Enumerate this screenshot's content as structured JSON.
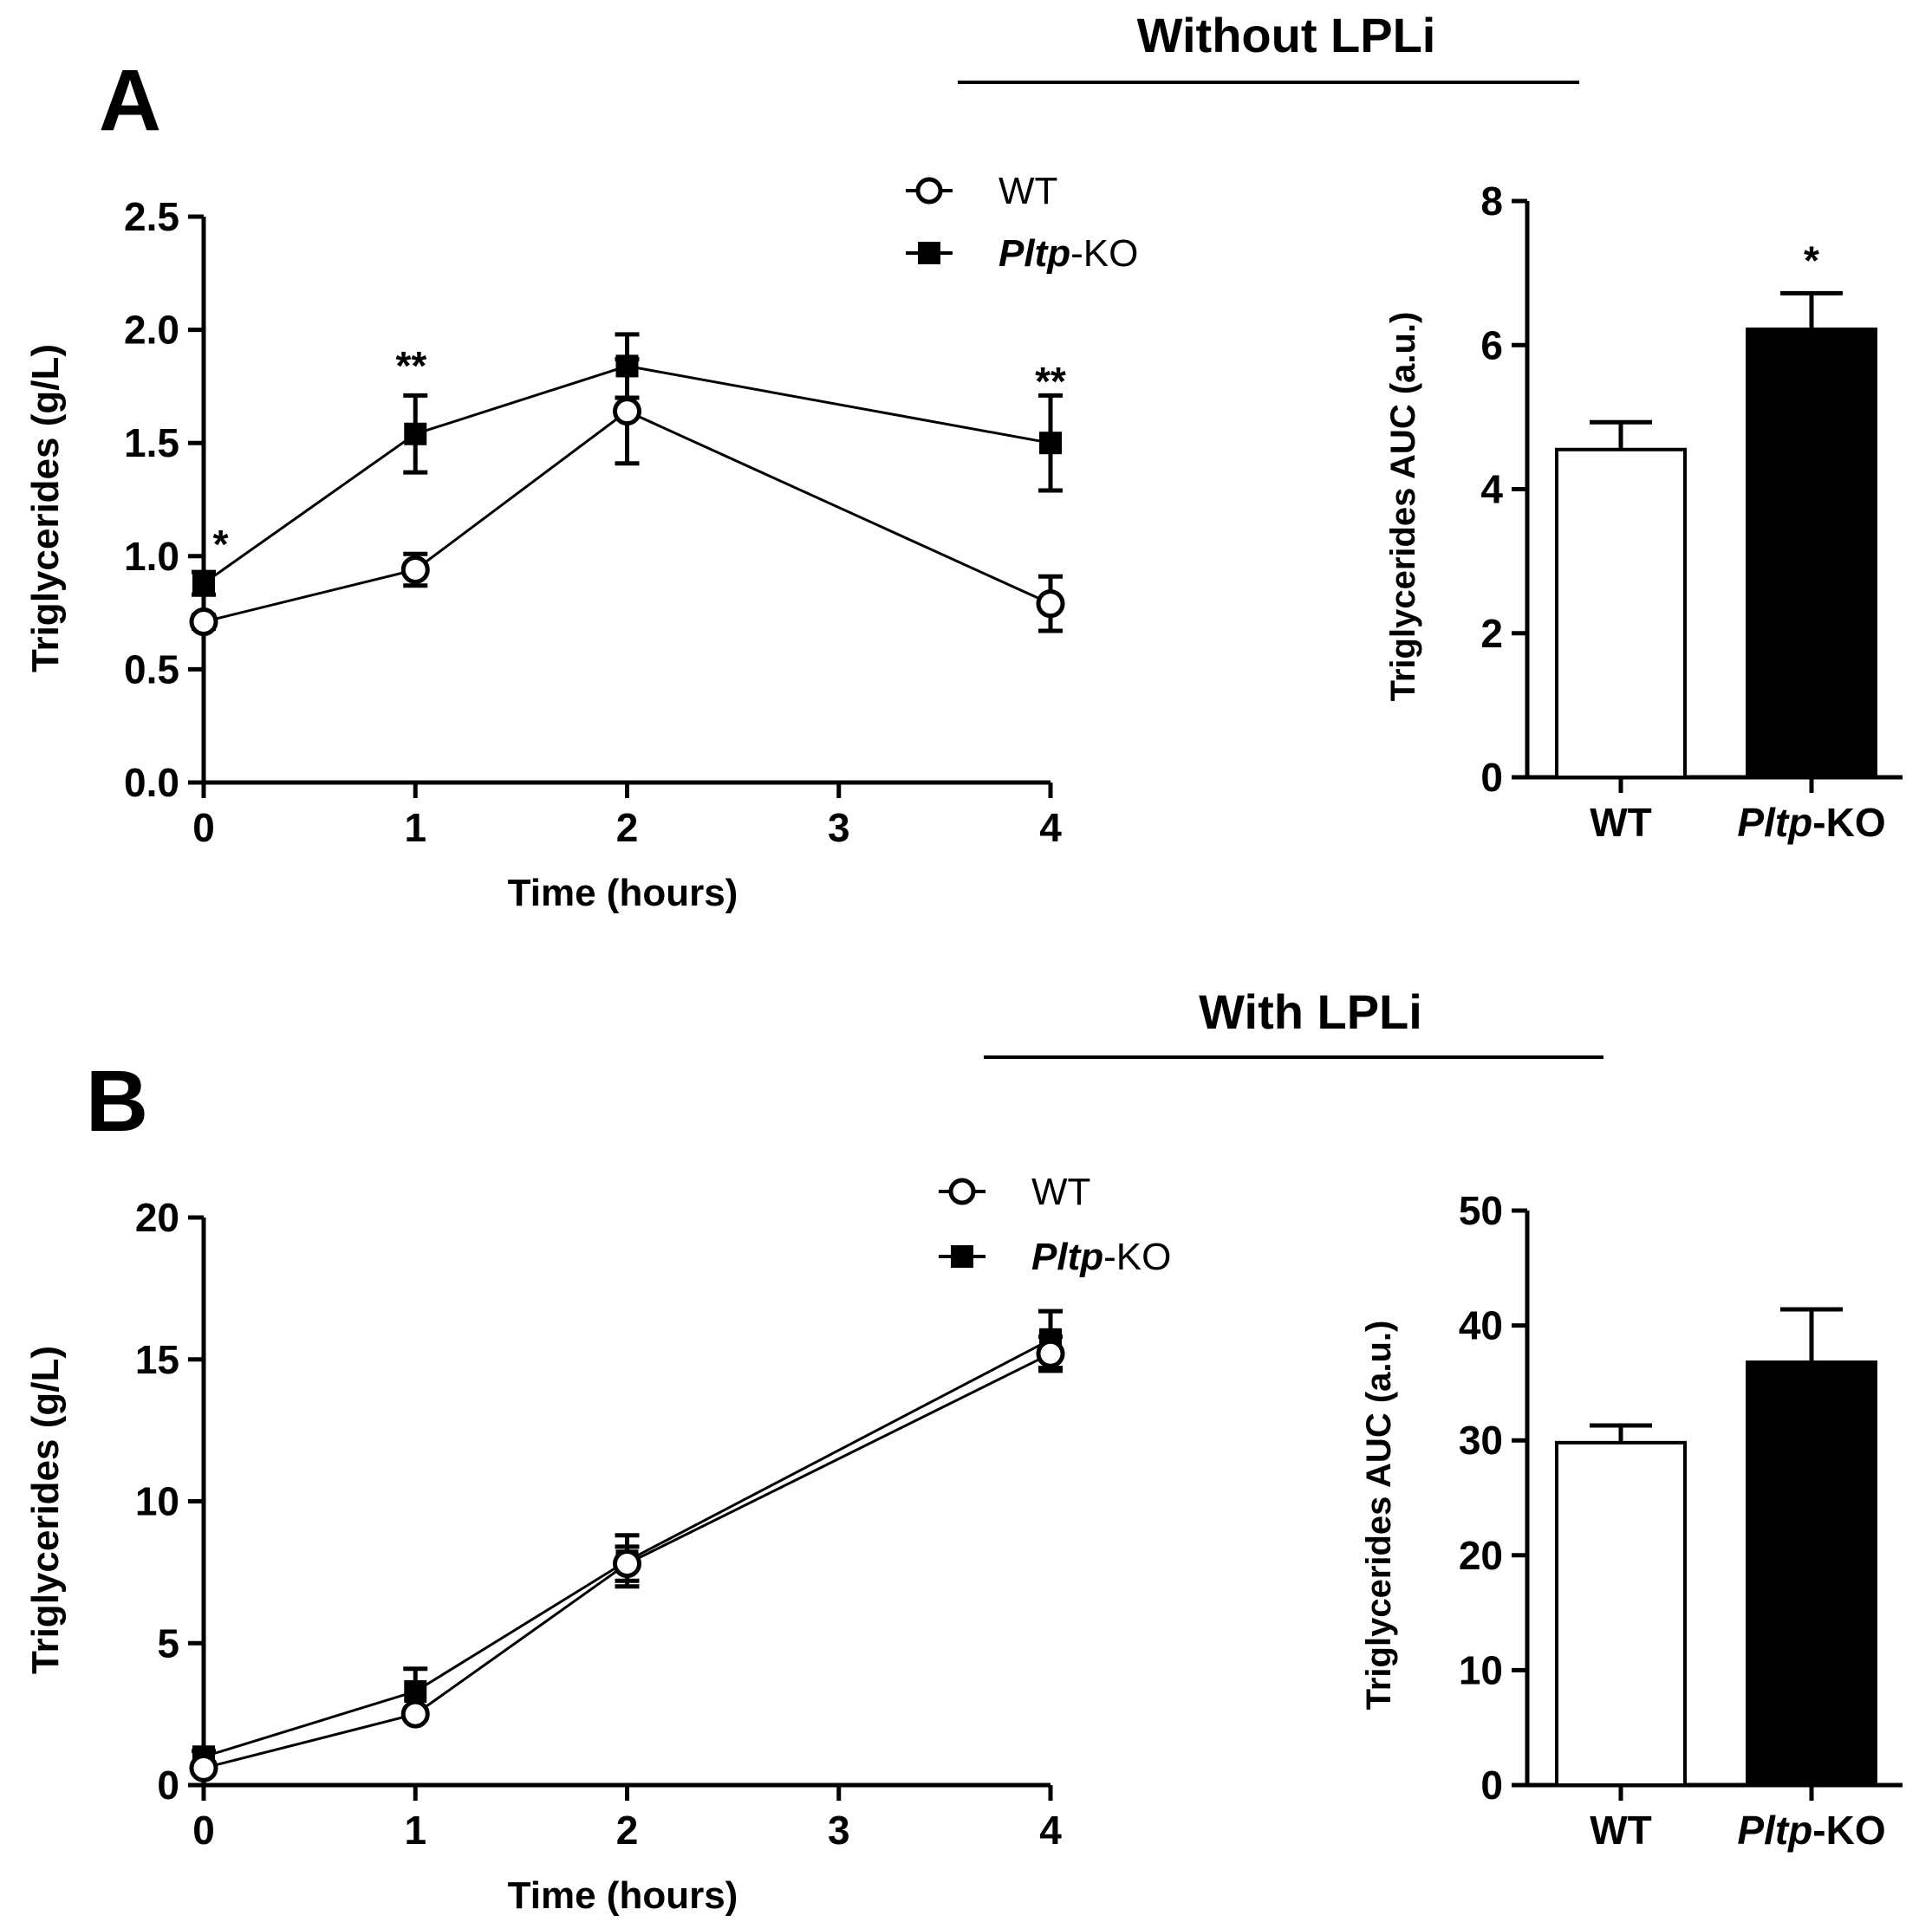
{
  "chart_data": [
    {
      "id": "A_line",
      "type": "line",
      "panel_label": "A",
      "section_title": "Without LPLi",
      "xlabel": "Time (hours)",
      "ylabel": "Triglycerides (g/L)",
      "xlim": [
        0,
        4
      ],
      "ylim": [
        0,
        2.5
      ],
      "xticks": [
        0,
        1,
        2,
        3,
        4
      ],
      "xtick_labels": [
        "0",
        "1",
        "2",
        "3",
        "4"
      ],
      "yticks": [
        0,
        0.5,
        1.0,
        1.5,
        2.0,
        2.5
      ],
      "ytick_labels": [
        "0.0",
        "0.5",
        "1.0",
        "1.5",
        "2.0",
        "2.5"
      ],
      "legend": [
        {
          "marker": "open-circle",
          "name": "WT",
          "italic": ""
        },
        {
          "marker": "filled-square",
          "name": "-KO",
          "italic": "Pltp"
        }
      ],
      "series": [
        {
          "name": "WT",
          "marker": "open-circle",
          "x": [
            0,
            1,
            2,
            4
          ],
          "y": [
            0.71,
            0.94,
            1.64,
            0.79
          ],
          "err": [
            0.03,
            0.07,
            0.23,
            0.12
          ]
        },
        {
          "name": "Pltp-KO",
          "marker": "filled-square",
          "x": [
            0,
            1,
            2,
            4
          ],
          "y": [
            0.88,
            1.54,
            1.84,
            1.5
          ],
          "err": [
            0.05,
            0.17,
            0.14,
            0.21
          ]
        }
      ],
      "annotations": [
        {
          "text": "*",
          "x": 0.08,
          "y": 1.06
        },
        {
          "text": "**",
          "x": 0.98,
          "y": 1.85
        },
        {
          "text": "**",
          "x": 4.0,
          "y": 1.78
        }
      ]
    },
    {
      "id": "A_bar",
      "type": "bar",
      "ylabel": "Triglycerides AUC (a.u.)",
      "ylim": [
        0,
        8
      ],
      "yticks": [
        0,
        2,
        4,
        6,
        8
      ],
      "ytick_labels": [
        "0",
        "2",
        "4",
        "6",
        "8"
      ],
      "categories": [
        {
          "italic": "",
          "text": "WT"
        },
        {
          "italic": "Pltp",
          "text": "-KO"
        }
      ],
      "values": [
        4.55,
        6.22
      ],
      "err": [
        0.38,
        0.5
      ],
      "fills": [
        "#ffffff",
        "#000000"
      ],
      "annotations": [
        {
          "text": "*",
          "category_index": 1
        }
      ]
    },
    {
      "id": "B_line",
      "type": "line",
      "panel_label": "B",
      "section_title": "With LPLi",
      "xlabel": "Time (hours)",
      "ylabel": "Triglycerides (g/L)",
      "xlim": [
        0,
        4
      ],
      "ylim": [
        0,
        20
      ],
      "xticks": [
        0,
        1,
        2,
        3,
        4
      ],
      "xtick_labels": [
        "0",
        "1",
        "2",
        "3",
        "4"
      ],
      "yticks": [
        0,
        5,
        10,
        15,
        20
      ],
      "ytick_labels": [
        "0",
        "5",
        "10",
        "15",
        "20"
      ],
      "legend": [
        {
          "marker": "open-circle",
          "name": "WT",
          "italic": ""
        },
        {
          "marker": "filled-square",
          "name": "-KO",
          "italic": "Pltp"
        }
      ],
      "series": [
        {
          "name": "WT",
          "marker": "open-circle",
          "x": [
            0,
            1,
            2,
            4
          ],
          "y": [
            0.6,
            2.5,
            7.8,
            15.2
          ],
          "err": [
            0.2,
            0.2,
            0.6,
            0.6
          ]
        },
        {
          "name": "Pltp-KO",
          "marker": "filled-square",
          "x": [
            0,
            1,
            2,
            4
          ],
          "y": [
            1.0,
            3.3,
            7.9,
            15.7
          ],
          "err": [
            0.2,
            0.8,
            0.9,
            1.0
          ]
        }
      ],
      "annotations": []
    },
    {
      "id": "B_bar",
      "type": "bar",
      "ylabel": "Triglycerides AUC (a.u.)",
      "ylim": [
        0,
        50
      ],
      "yticks": [
        0,
        10,
        20,
        30,
        40,
        50
      ],
      "ytick_labels": [
        "0",
        "10",
        "20",
        "30",
        "40",
        "50"
      ],
      "categories": [
        {
          "italic": "",
          "text": "WT"
        },
        {
          "italic": "Pltp",
          "text": "-KO"
        }
      ],
      "values": [
        29.8,
        36.8
      ],
      "err": [
        1.5,
        4.6
      ],
      "fills": [
        "#ffffff",
        "#000000"
      ],
      "annotations": []
    }
  ]
}
